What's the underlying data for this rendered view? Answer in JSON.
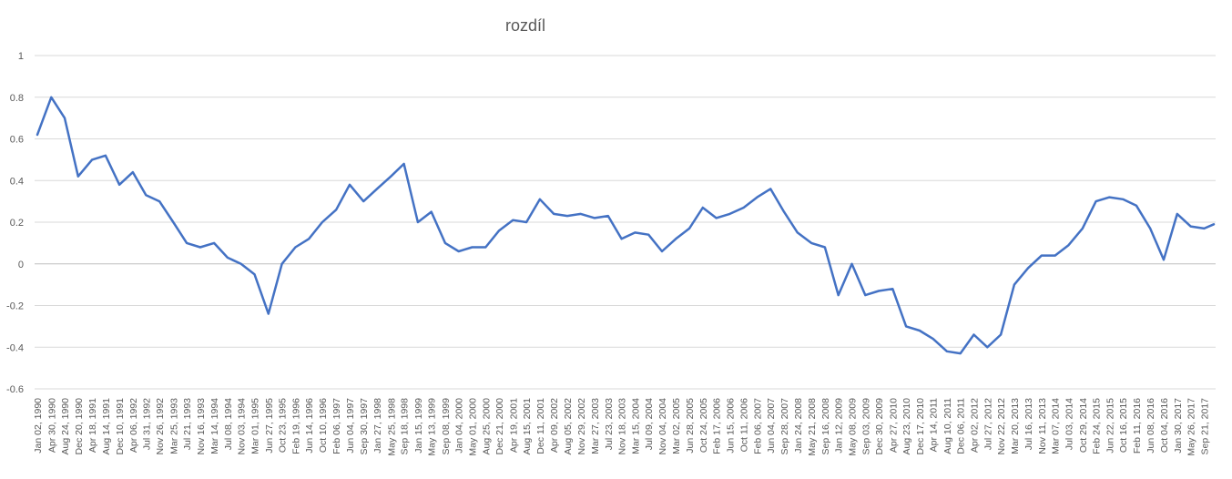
{
  "chart_data": {
    "type": "line",
    "title": "rozdíl",
    "xlabel": "",
    "ylabel": "",
    "ylim": [
      -0.6,
      1
    ],
    "yticks": [
      "1",
      "0.8",
      "0.6",
      "0.4",
      "0.2",
      "0",
      "-0.2",
      "-0.4",
      "-0.6"
    ],
    "ytick_values": [
      1,
      0.8,
      0.6,
      0.4,
      0.2,
      0,
      -0.2,
      -0.4,
      -0.6
    ],
    "grid": true,
    "legend": "none",
    "line_color": "#4472C4",
    "xtick_labels": [
      "Jan 02, 1990",
      "Apr 30, 1990",
      "Aug 24, 1990",
      "Dec 20, 1990",
      "Apr 18, 1991",
      "Aug 14, 1991",
      "Dec 10, 1991",
      "Apr 06, 1992",
      "Jul 31, 1992",
      "Nov 26, 1992",
      "Mar 25, 1993",
      "Jul 21, 1993",
      "Nov 16, 1993",
      "Mar 14, 1994",
      "Jul 08, 1994",
      "Nov 03, 1994",
      "Mar 01, 1995",
      "Jun 27, 1995",
      "Oct 23, 1995",
      "Feb 19, 1996",
      "Jun 14, 1996",
      "Oct 10, 1996",
      "Feb 06, 1997",
      "Jun 04, 1997",
      "Sep 30, 1997",
      "Jan 27, 1998",
      "May 25, 1998",
      "Sep 18, 1998",
      "Jan 15, 1999",
      "May 13, 1999",
      "Sep 08, 1999",
      "Jan 04, 2000",
      "May 01, 2000",
      "Aug 25, 2000",
      "Dec 21, 2000",
      "Apr 19, 2001",
      "Aug 15, 2001",
      "Dec 11, 2001",
      "Apr 09, 2002",
      "Aug 05, 2002",
      "Nov 29, 2002",
      "Mar 27, 2003",
      "Jul 23, 2003",
      "Nov 18, 2003",
      "Mar 15, 2004",
      "Jul 09, 2004",
      "Nov 04, 2004",
      "Mar 02, 2005",
      "Jun 28, 2005",
      "Oct 24, 2005",
      "Feb 17, 2006",
      "Jun 15, 2006",
      "Oct 11, 2006",
      "Feb 06, 2007",
      "Jun 04, 2007",
      "Sep 28, 2007",
      "Jan 24, 2008",
      "May 21, 2008",
      "Sep 16, 2008",
      "Jan 12, 2009",
      "May 08, 2009",
      "Sep 03, 2009",
      "Dec 30, 2009",
      "Apr 27, 2010",
      "Aug 23, 2010",
      "Dec 17, 2010",
      "Apr 14, 2011",
      "Aug 10, 2011",
      "Dec 06, 2011",
      "Apr 02, 2012",
      "Jul 27, 2012",
      "Nov 22, 2012",
      "Mar 20, 2013",
      "Jul 16, 2013",
      "Nov 11, 2013",
      "Mar 07, 2014",
      "Jul 03, 2014",
      "Oct 29, 2014",
      "Feb 24, 2015",
      "Jun 22, 2015",
      "Oct 16, 2015",
      "Feb 11, 2016",
      "Jun 08, 2016",
      "Oct 04, 2016",
      "Jan 30, 2017",
      "May 26, 2017",
      "Sep 21, 2017"
    ],
    "x": [
      1990.0,
      1990.33,
      1990.65,
      1990.97,
      1991.3,
      1991.62,
      1991.95,
      1992.27,
      1992.58,
      1992.9,
      1993.23,
      1993.55,
      1993.87,
      1994.2,
      1994.52,
      1994.84,
      1995.16,
      1995.49,
      1995.81,
      1996.13,
      1996.45,
      1996.77,
      1997.1,
      1997.42,
      1997.75,
      1998.07,
      1998.4,
      1998.71,
      1999.04,
      1999.36,
      1999.69,
      2000.01,
      2000.33,
      2000.65,
      2000.97,
      2001.3,
      2001.62,
      2001.94,
      2002.27,
      2002.59,
      2002.91,
      2003.24,
      2003.56,
      2003.88,
      2004.2,
      2004.52,
      2004.84,
      2005.17,
      2005.49,
      2005.81,
      2006.13,
      2006.45,
      2006.78,
      2007.1,
      2007.42,
      2007.74,
      2008.06,
      2008.39,
      2008.71,
      2009.03,
      2009.35,
      2009.67,
      2009.99,
      2010.32,
      2010.64,
      2010.96,
      2011.28,
      2011.61,
      2011.93,
      2012.25,
      2012.57,
      2012.89,
      2013.21,
      2013.54,
      2013.86,
      2014.18,
      2014.5,
      2014.83,
      2015.15,
      2015.47,
      2015.79,
      2016.11,
      2016.44,
      2016.76,
      2017.08,
      2017.4,
      2017.72,
      2017.95
    ],
    "values": [
      0.62,
      0.8,
      0.7,
      0.42,
      0.5,
      0.52,
      0.38,
      0.44,
      0.33,
      0.3,
      0.2,
      0.1,
      0.08,
      0.1,
      0.03,
      0.0,
      -0.05,
      -0.24,
      0.0,
      0.08,
      0.12,
      0.2,
      0.26,
      0.38,
      0.3,
      0.36,
      0.42,
      0.48,
      0.2,
      0.25,
      0.1,
      0.06,
      0.08,
      0.08,
      0.16,
      0.21,
      0.2,
      0.31,
      0.24,
      0.23,
      0.24,
      0.22,
      0.23,
      0.12,
      0.15,
      0.14,
      0.06,
      0.12,
      0.17,
      0.27,
      0.22,
      0.24,
      0.27,
      0.32,
      0.36,
      0.25,
      0.15,
      0.1,
      0.08,
      -0.15,
      0.0,
      -0.15,
      -0.13,
      -0.12,
      -0.3,
      -0.32,
      -0.36,
      -0.42,
      -0.43,
      -0.34,
      -0.4,
      -0.34,
      -0.1,
      -0.02,
      0.04,
      0.04,
      0.09,
      0.17,
      0.3,
      0.32,
      0.31,
      0.28,
      0.17,
      0.02,
      0.24,
      0.18,
      0.17,
      0.19
    ]
  }
}
